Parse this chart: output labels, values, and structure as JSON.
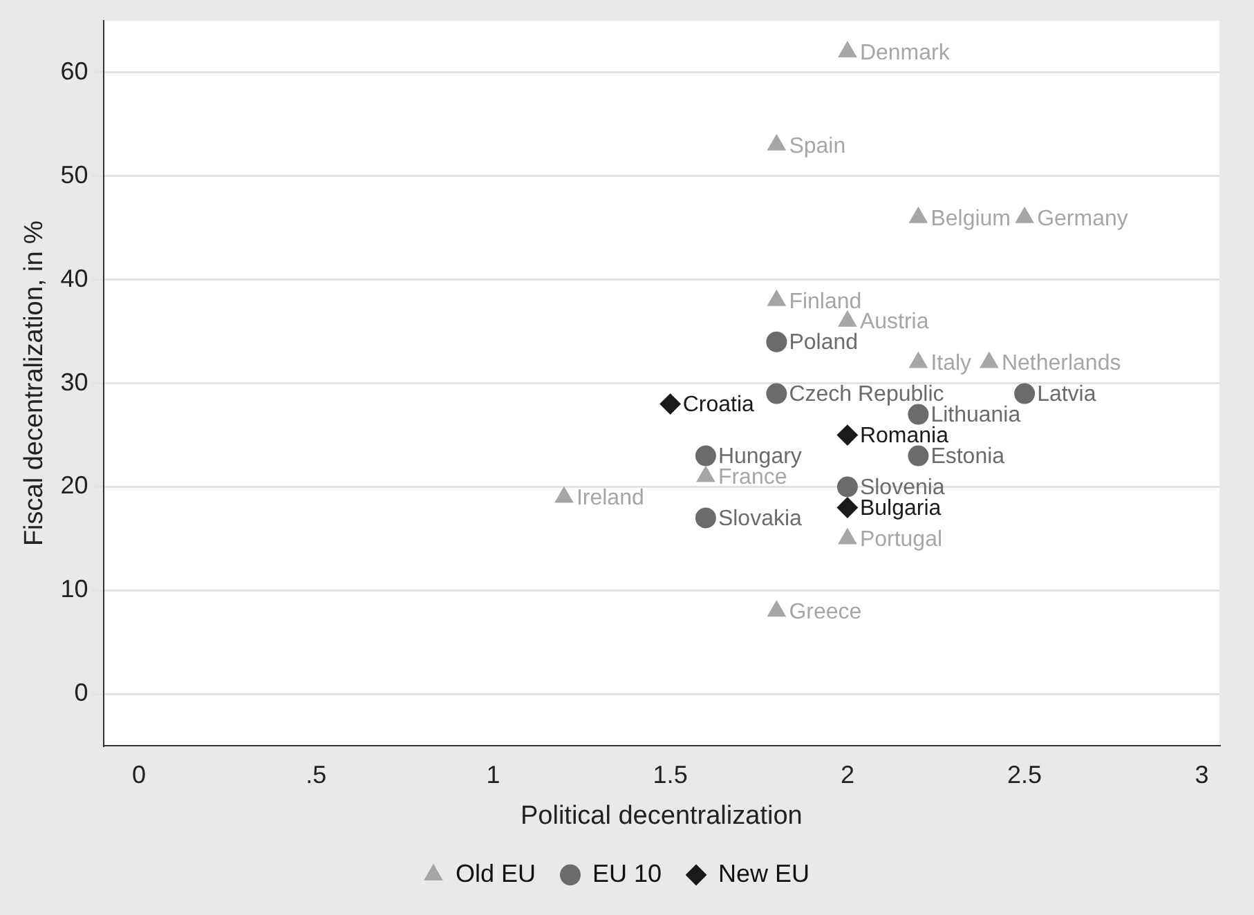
{
  "chart_data": {
    "type": "scatter",
    "xlabel": "Political decentralization",
    "ylabel": "Fiscal decentralization, in %",
    "xlim": [
      -0.1,
      3.05
    ],
    "xticks": [
      0,
      {
        "value": 0.5,
        "label": ".5"
      },
      1,
      1.5,
      2,
      2.5,
      3
    ],
    "ylim": [
      -5,
      65
    ],
    "yticks": [
      0,
      10,
      20,
      30,
      40,
      50,
      60
    ],
    "grid": "y",
    "legend": "bottom",
    "series": [
      {
        "name": "Old EU",
        "color": "#a6a6a6",
        "marker": "triangle",
        "x": [
          2,
          1.8,
          2.2,
          2.5,
          1.8,
          2,
          2.2,
          2.4,
          1.6,
          1.2,
          2,
          1.8
        ],
        "values": [
          62,
          53,
          46,
          46,
          38,
          36,
          32,
          32,
          21,
          19,
          15,
          8
        ]
      },
      {
        "name": "EU 10",
        "color": "#6b6b6b",
        "marker": "circle",
        "x": [
          1.8,
          1.8,
          2.5,
          2.2,
          1.6,
          2.2,
          2,
          1.6
        ],
        "values": [
          34,
          29,
          29,
          27,
          23,
          23,
          20,
          17
        ]
      },
      {
        "name": "New EU",
        "color": "#1a1a1a",
        "marker": "diamond",
        "x": [
          1.5,
          2,
          2
        ],
        "values": [
          28,
          25,
          18
        ]
      }
    ],
    "annotations": [
      {
        "text": "Denmark",
        "x": 2,
        "y": 62
      },
      {
        "text": "Spain",
        "x": 1.8,
        "y": 53
      },
      {
        "text": "Belgium",
        "x": 2.2,
        "y": 46
      },
      {
        "text": "Germany",
        "x": 2.5,
        "y": 46
      },
      {
        "text": "Finland",
        "x": 1.8,
        "y": 38
      },
      {
        "text": "Austria",
        "x": 2,
        "y": 36
      },
      {
        "text": "Italy",
        "x": 2.2,
        "y": 32
      },
      {
        "text": "Netherlands",
        "x": 2.4,
        "y": 32
      },
      {
        "text": "France",
        "x": 1.6,
        "y": 21
      },
      {
        "text": "Ireland",
        "x": 1.2,
        "y": 19
      },
      {
        "text": "Portugal",
        "x": 2,
        "y": 15
      },
      {
        "text": "Greece",
        "x": 1.8,
        "y": 8
      },
      {
        "text": "Poland",
        "x": 1.8,
        "y": 34
      },
      {
        "text": "Czech Republic",
        "x": 1.8,
        "y": 29
      },
      {
        "text": "Latvia",
        "x": 2.5,
        "y": 29
      },
      {
        "text": "Lithuania",
        "x": 2.2,
        "y": 27
      },
      {
        "text": "Hungary",
        "x": 1.6,
        "y": 23
      },
      {
        "text": "Estonia",
        "x": 2.2,
        "y": 23
      },
      {
        "text": "Slovenia",
        "x": 2,
        "y": 20
      },
      {
        "text": "Slovakia",
        "x": 1.6,
        "y": 17
      },
      {
        "text": "Croatia",
        "x": 1.5,
        "y": 28
      },
      {
        "text": "Romania",
        "x": 2,
        "y": 25
      },
      {
        "text": "Bulgaria",
        "x": 2,
        "y": 18
      }
    ]
  }
}
